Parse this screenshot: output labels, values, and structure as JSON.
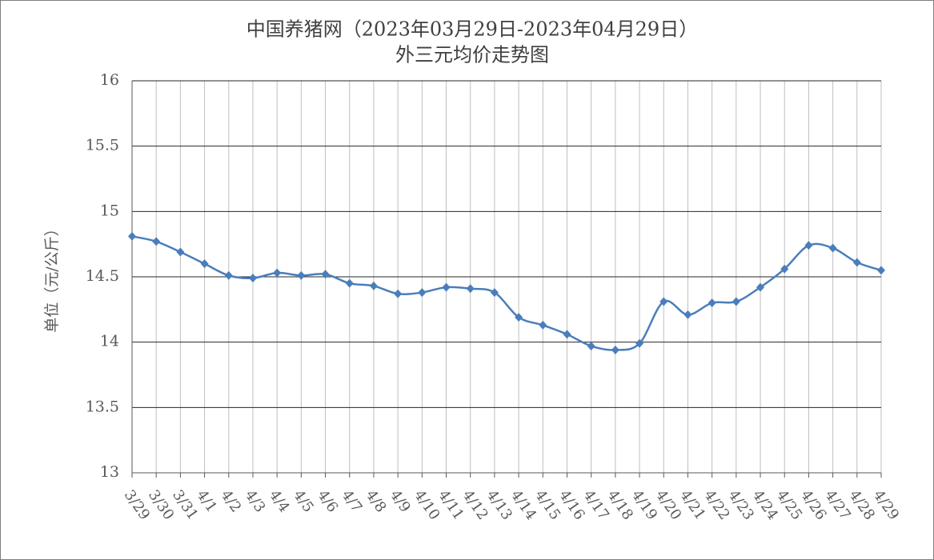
{
  "chart_data": {
    "type": "line",
    "title": "中国养猪网（2023年03月29日-2023年04月29日）",
    "subtitle": "外三元均价走势图",
    "y_label": "单位（元/公斤）",
    "categories": [
      "3/29",
      "3/30",
      "3/31",
      "4/1",
      "4/2",
      "4/3",
      "4/4",
      "4/5",
      "4/6",
      "4/7",
      "4/8",
      "4/9",
      "4/10",
      "4/11",
      "4/12",
      "4/13",
      "4/14",
      "4/15",
      "4/16",
      "4/17",
      "4/18",
      "4/19",
      "4/20",
      "4/21",
      "4/22",
      "4/23",
      "4/24",
      "4/25",
      "4/26",
      "4/27",
      "4/28",
      "4/29"
    ],
    "series": [
      {
        "name": "外三元",
        "color": "#4a7ebb",
        "values": [
          14.81,
          14.77,
          14.69,
          14.6,
          14.51,
          14.49,
          14.53,
          14.51,
          14.52,
          14.45,
          14.43,
          14.37,
          14.38,
          14.42,
          14.41,
          14.38,
          14.19,
          14.13,
          14.06,
          13.97,
          13.94,
          13.99,
          14.31,
          14.21,
          14.3,
          14.31,
          14.42,
          14.56,
          14.74,
          14.72,
          14.61,
          14.55
        ]
      }
    ],
    "ylim": [
      13,
      16
    ],
    "yticks": [
      13,
      13.5,
      14,
      14.5,
      15,
      15.5,
      16
    ],
    "grid": true
  }
}
